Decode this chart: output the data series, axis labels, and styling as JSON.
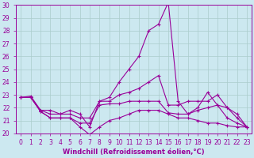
{
  "background_color": "#cce8f0",
  "grid_color": "#aacccc",
  "line_color": "#990099",
  "xlabel": "Windchill (Refroidissement éolien,°C)",
  "ylim": [
    20,
    30
  ],
  "xlim": [
    -0.5,
    23.5
  ],
  "yticks": [
    20,
    21,
    22,
    23,
    24,
    25,
    26,
    27,
    28,
    29,
    30
  ],
  "xticks": [
    0,
    1,
    2,
    3,
    4,
    5,
    6,
    7,
    8,
    9,
    10,
    11,
    12,
    13,
    14,
    15,
    16,
    17,
    18,
    19,
    20,
    21,
    22,
    23
  ],
  "series": [
    [
      22.8,
      22.8,
      21.7,
      21.2,
      21.2,
      21.2,
      20.5,
      19.9,
      20.5,
      21.0,
      21.2,
      21.5,
      21.8,
      21.8,
      21.8,
      21.5,
      21.2,
      21.2,
      21.0,
      20.8,
      20.8,
      20.6,
      20.5,
      20.5
    ],
    [
      22.8,
      22.8,
      21.7,
      21.2,
      21.2,
      21.2,
      20.8,
      20.8,
      22.2,
      22.3,
      22.3,
      22.5,
      22.5,
      22.5,
      22.5,
      21.6,
      21.5,
      21.5,
      21.8,
      22.0,
      22.2,
      21.2,
      20.8,
      20.5
    ],
    [
      22.8,
      22.9,
      21.8,
      21.5,
      21.5,
      21.5,
      21.2,
      21.2,
      22.5,
      22.5,
      23.0,
      23.2,
      23.5,
      24.0,
      24.5,
      22.2,
      22.2,
      22.5,
      22.5,
      22.5,
      23.0,
      22.0,
      21.5,
      20.5
    ],
    [
      22.8,
      22.8,
      21.8,
      21.8,
      21.5,
      21.8,
      21.5,
      20.5,
      22.5,
      22.8,
      24.0,
      25.0,
      26.0,
      28.0,
      28.5,
      30.2,
      22.5,
      21.5,
      22.0,
      23.2,
      22.2,
      22.0,
      21.2,
      20.5
    ]
  ],
  "xlabel_fontsize": 6,
  "tick_fontsize": 5.5
}
